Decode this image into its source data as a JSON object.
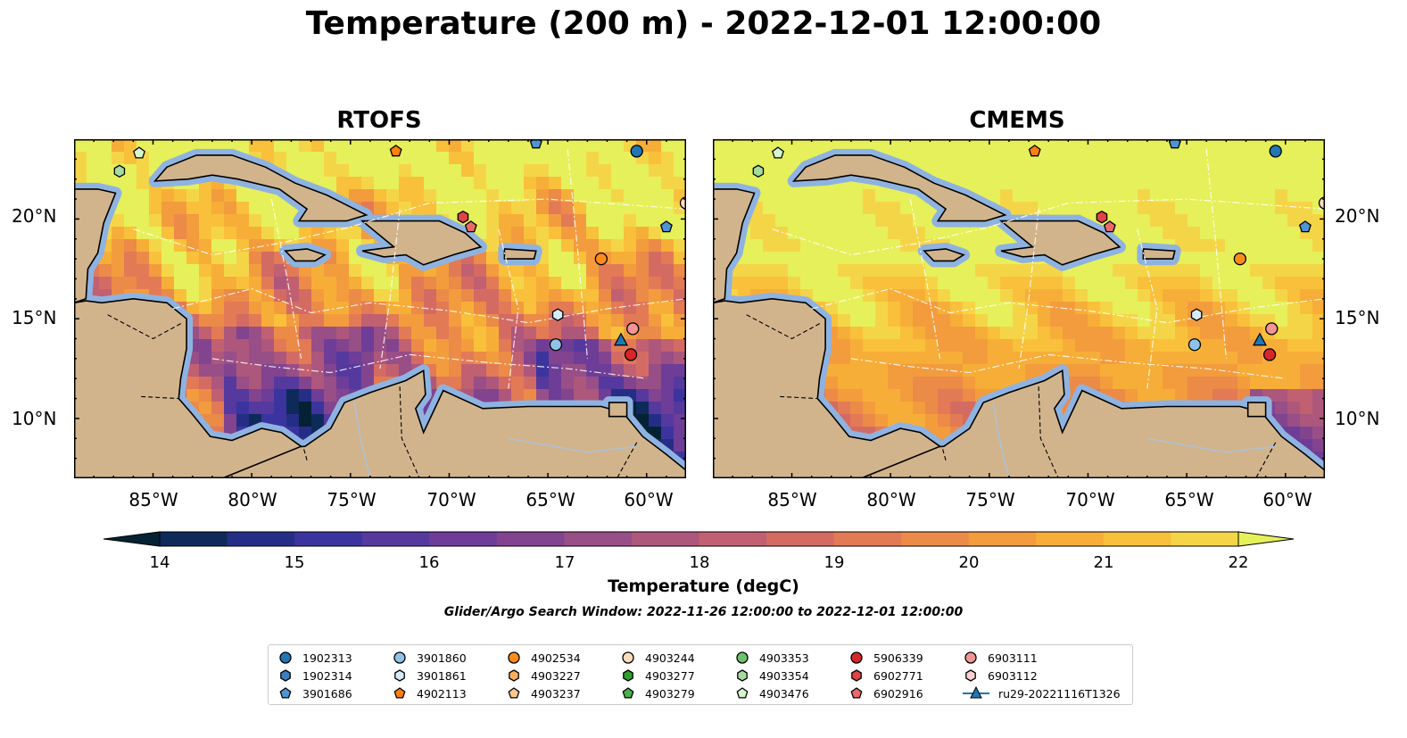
{
  "title": "Temperature (200 m) - 2022-12-01 12:00:00",
  "panels": [
    {
      "title": "RTOFS"
    },
    {
      "title": "CMEMS"
    }
  ],
  "axes": {
    "lat_ticks": [
      "20°N",
      "15°N",
      "10°N"
    ],
    "lon_ticks": [
      "85°W",
      "80°W",
      "75°W",
      "70°W",
      "65°W",
      "60°W"
    ]
  },
  "colorbar": {
    "label": "Temperature (degC)",
    "ticks": [
      "14",
      "15",
      "16",
      "17",
      "18",
      "19",
      "20",
      "21",
      "22"
    ],
    "range": [
      14,
      22
    ],
    "colormap": "thermal",
    "extend": "both"
  },
  "search_window": "Glider/Argo Search Window: 2022-11-26 12:00:00 to 2022-12-01 12:00:00",
  "legend": {
    "items": [
      {
        "label": "1902313",
        "marker": "circle",
        "color": "#1f77b4"
      },
      {
        "label": "1902314",
        "marker": "hexagon",
        "color": "#3a7fbf"
      },
      {
        "label": "3901686",
        "marker": "pentagon",
        "color": "#4f94d4"
      },
      {
        "label": "3901860",
        "marker": "circle",
        "color": "#8fc2e8"
      },
      {
        "label": "3901861",
        "marker": "hexagon",
        "color": "#d6ebf8"
      },
      {
        "label": "4902113",
        "marker": "pentagon",
        "color": "#ff7f0e"
      },
      {
        "label": "4902534",
        "marker": "circle",
        "color": "#ff8c1a"
      },
      {
        "label": "4903227",
        "marker": "hexagon",
        "color": "#ffae5c"
      },
      {
        "label": "4903237",
        "marker": "pentagon",
        "color": "#ffc891"
      },
      {
        "label": "4903244",
        "marker": "circle",
        "color": "#ffdcbc"
      },
      {
        "label": "4903277",
        "marker": "hexagon",
        "color": "#2ca02c"
      },
      {
        "label": "4903279",
        "marker": "pentagon",
        "color": "#4cb04c"
      },
      {
        "label": "4903353",
        "marker": "circle",
        "color": "#6cc36c"
      },
      {
        "label": "4903354",
        "marker": "hexagon",
        "color": "#a6dba0"
      },
      {
        "label": "4903476",
        "marker": "pentagon",
        "color": "#d5f5cf"
      },
      {
        "label": "5906339",
        "marker": "circle",
        "color": "#d62728"
      },
      {
        "label": "6902771",
        "marker": "hexagon",
        "color": "#e04444"
      },
      {
        "label": "6902916",
        "marker": "pentagon",
        "color": "#ea6a6a"
      },
      {
        "label": "6903111",
        "marker": "circle",
        "color": "#f29595"
      },
      {
        "label": "6903112",
        "marker": "hexagon",
        "color": "#fbd0d0"
      },
      {
        "label": "ru29-20221116T1326",
        "marker": "triangle-line",
        "color": "#1f77b4"
      }
    ]
  },
  "map_extent": {
    "lon": [
      -89,
      -58
    ],
    "lat": [
      7,
      24
    ]
  },
  "floats": [
    {
      "id": "4903476",
      "lon": -85.7,
      "lat": 23.3
    },
    {
      "id": "4903354",
      "lon": -86.7,
      "lat": 22.4
    },
    {
      "id": "4902113",
      "lon": -72.7,
      "lat": 23.4
    },
    {
      "id": "3901686",
      "lon": -65.6,
      "lat": 23.8
    },
    {
      "id": "1902313",
      "lon": -60.5,
      "lat": 23.4
    },
    {
      "id": "4903244",
      "lon": -58.0,
      "lat": 20.8
    },
    {
      "id": "3901686",
      "lon": -59.0,
      "lat": 19.6
    },
    {
      "id": "6902771",
      "lon": -69.3,
      "lat": 20.1
    },
    {
      "id": "6902916",
      "lon": -68.9,
      "lat": 19.6
    },
    {
      "id": "4902534",
      "lon": -62.3,
      "lat": 18.0
    },
    {
      "id": "3901861",
      "lon": -64.5,
      "lat": 15.2
    },
    {
      "id": "6903111",
      "lon": -60.7,
      "lat": 14.5
    },
    {
      "id": "3901860",
      "lon": -64.6,
      "lat": 13.7
    },
    {
      "id": "5906339",
      "lon": -60.8,
      "lat": 13.2
    }
  ],
  "glider": {
    "id": "ru29-20221116T1326",
    "lon": -61.3,
    "lat": 13.9
  }
}
